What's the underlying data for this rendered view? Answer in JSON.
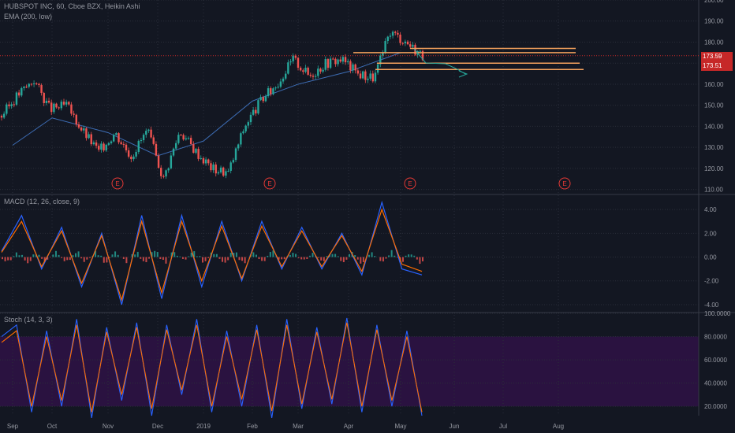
{
  "header": {
    "symbol_line": "HUBSPOT INC, 60, Cboe BZX, Heikin Ashi",
    "ema_label": "EMA (200, low)",
    "macd_label": "MACD (12, 26, close, 9)",
    "stoch_label": "Stoch (14, 3, 3)"
  },
  "colors": {
    "background": "#131722",
    "grid": "#2a2e39",
    "up": "#26a69a",
    "down": "#ef5350",
    "ema": "#3d6db5",
    "level_line": "#f5a25d",
    "earnings": "#e53935",
    "macd": "#2962ff",
    "signal": "#ff6d00",
    "stoch_k": "#2962ff",
    "stoch_d": "#ff6d00",
    "stoch_band": "#2a1240",
    "price_badge": "#c62828"
  },
  "chart_data": [
    {
      "type": "candlestick",
      "title": "HUBSPOT INC, 60, Cboe BZX, Heikin Ashi",
      "x_ticks": [
        "Sep",
        "Oct",
        "Nov",
        "Dec",
        "2019",
        "Feb",
        "Mar",
        "Apr",
        "May",
        "Jun",
        "Jul",
        "Aug"
      ],
      "y_ticks": [
        "110.00",
        "120.00",
        "130.00",
        "140.00",
        "150.00",
        "160.00",
        "170.00",
        "180.00",
        "190.00",
        "200.00"
      ],
      "ylim": [
        108,
        200
      ],
      "price_badges": [
        "173.59",
        "173.51"
      ],
      "earnings_markers": [
        "E",
        "E",
        "E",
        "E"
      ],
      "earnings_dates": [
        "Nov",
        "Feb",
        "May",
        "Aug"
      ],
      "close_path": [
        {
          "x": "Sep",
          "y": 145
        },
        {
          "x": "Sep",
          "y": 155
        },
        {
          "x": "Sep",
          "y": 162
        },
        {
          "x": "Oct",
          "y": 148
        },
        {
          "x": "Oct",
          "y": 150
        },
        {
          "x": "Oct",
          "y": 138
        },
        {
          "x": "Oct",
          "y": 128
        },
        {
          "x": "Nov",
          "y": 137
        },
        {
          "x": "Nov",
          "y": 126
        },
        {
          "x": "Nov",
          "y": 138
        },
        {
          "x": "Nov",
          "y": 115
        },
        {
          "x": "Dec",
          "y": 138
        },
        {
          "x": "Dec",
          "y": 128
        },
        {
          "x": "Dec",
          "y": 120
        },
        {
          "x": "2019",
          "y": 118
        },
        {
          "x": "2019",
          "y": 140
        },
        {
          "x": "2019",
          "y": 152
        },
        {
          "x": "Feb",
          "y": 160
        },
        {
          "x": "Feb",
          "y": 172
        },
        {
          "x": "Mar",
          "y": 164
        },
        {
          "x": "Mar",
          "y": 170
        },
        {
          "x": "Apr",
          "y": 172
        },
        {
          "x": "Apr",
          "y": 165
        },
        {
          "x": "Apr",
          "y": 163
        },
        {
          "x": "May",
          "y": 185
        },
        {
          "x": "May",
          "y": 180
        },
        {
          "x": "May",
          "y": 173.5
        }
      ],
      "ema_path": [
        {
          "x": "Sep",
          "y": 131
        },
        {
          "x": "Oct",
          "y": 144
        },
        {
          "x": "Nov",
          "y": 137
        },
        {
          "x": "Dec",
          "y": 126
        },
        {
          "x": "2019",
          "y": 133
        },
        {
          "x": "Feb",
          "y": 152
        },
        {
          "x": "Mar",
          "y": 160
        },
        {
          "x": "Apr",
          "y": 166
        },
        {
          "x": "May",
          "y": 175
        }
      ],
      "horizontal_levels": [
        177,
        175,
        170,
        167
      ]
    },
    {
      "type": "line",
      "title": "MACD (12, 26, close, 9)",
      "y_ticks": [
        "4.00",
        "2.00",
        "0.00",
        "-2.00",
        "-4.00"
      ],
      "ylim": [
        -4.6,
        5.2
      ],
      "series": [
        {
          "name": "MACD",
          "values": [
            0.5,
            3.5,
            -1.0,
            2.5,
            -2.5,
            2.0,
            -4.0,
            3.5,
            -3.5,
            3.5,
            -2.5,
            3.0,
            -2.0,
            3.0,
            -1.0,
            2.5,
            -1.0,
            2.0,
            -1.5,
            4.6,
            -1.0,
            -1.5
          ]
        },
        {
          "name": "Signal",
          "values": [
            0.4,
            3.0,
            -0.8,
            2.2,
            -2.2,
            1.8,
            -3.6,
            3.0,
            -3.0,
            3.0,
            -2.0,
            2.6,
            -1.8,
            2.6,
            -0.8,
            2.2,
            -0.8,
            1.8,
            -1.2,
            4.0,
            -0.6,
            -1.2
          ]
        }
      ]
    },
    {
      "type": "line",
      "title": "Stoch (14, 3, 3)",
      "y_ticks": [
        "100.0000",
        "80.0000",
        "60.0000",
        "40.0000",
        "20.0000"
      ],
      "ylim": [
        12,
        100
      ],
      "band": [
        20,
        80
      ],
      "series": [
        {
          "name": "%K",
          "values": [
            80,
            90,
            15,
            85,
            20,
            95,
            10,
            88,
            25,
            92,
            12,
            90,
            30,
            95,
            15,
            85,
            20,
            90,
            10,
            95,
            18,
            88,
            22,
            96,
            15,
            90,
            20,
            85,
            12
          ]
        },
        {
          "name": "%D",
          "values": [
            75,
            85,
            20,
            80,
            25,
            90,
            15,
            84,
            30,
            88,
            18,
            86,
            34,
            90,
            20,
            80,
            26,
            86,
            16,
            90,
            22,
            84,
            26,
            92,
            20,
            86,
            25,
            80,
            15
          ]
        }
      ]
    }
  ]
}
